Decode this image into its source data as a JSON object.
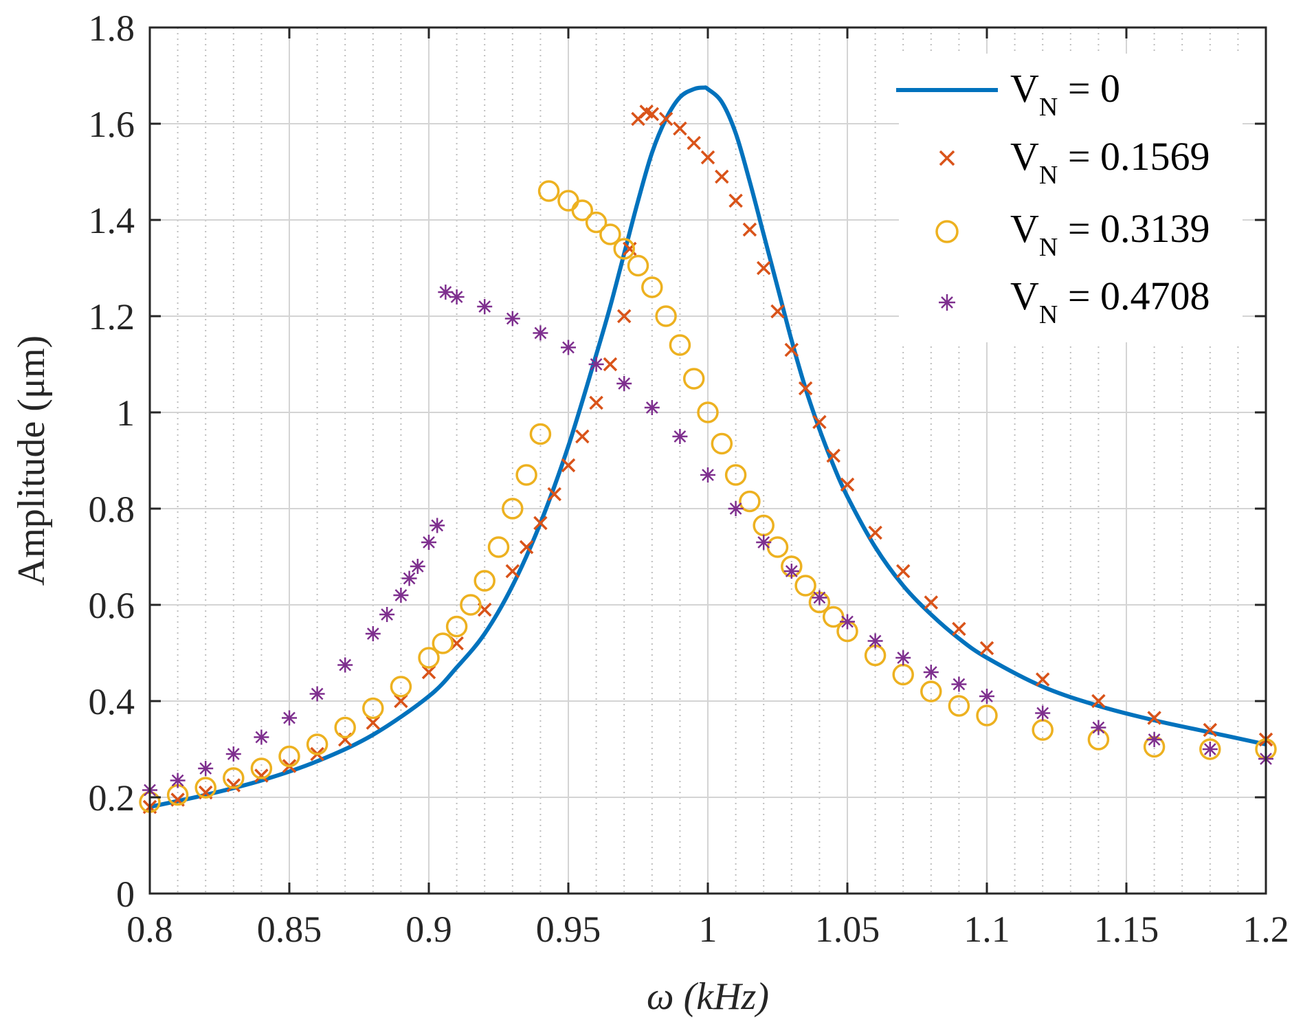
{
  "chart_data": {
    "type": "scatter",
    "title": "",
    "xlabel": {
      "symbol": "ω",
      "unit": "(kHz)"
    },
    "ylabel": {
      "text": "Amplitude",
      "unit": "(μm)"
    },
    "xlim": [
      0.8,
      1.2
    ],
    "ylim": [
      0,
      1.8
    ],
    "xticks": [
      0.8,
      0.85,
      0.9,
      0.95,
      1.0,
      1.05,
      1.1,
      1.15,
      1.2
    ],
    "xtick_labels": [
      "0.8",
      "0.85",
      "0.9",
      "0.95",
      "1",
      "1.05",
      "1.1",
      "1.15",
      "1.2"
    ],
    "yticks": [
      0,
      0.2,
      0.4,
      0.6,
      0.8,
      1.0,
      1.2,
      1.4,
      1.6,
      1.8
    ],
    "ytick_labels": [
      "0",
      "0.2",
      "0.4",
      "0.6",
      "0.8",
      "1",
      "1.2",
      "1.4",
      "1.6",
      "1.8"
    ],
    "grid": {
      "major": true,
      "minor_x": true
    },
    "legend_position": "top-right",
    "series": [
      {
        "name": "V_N = 0",
        "legend": {
          "base": "V",
          "sub": "N",
          "rest": " = 0"
        },
        "marker": "line",
        "color": "#0072BD",
        "x": [
          0.8,
          0.82,
          0.84,
          0.86,
          0.88,
          0.9,
          0.91,
          0.92,
          0.93,
          0.94,
          0.95,
          0.96,
          0.965,
          0.97,
          0.975,
          0.98,
          0.985,
          0.99,
          0.995,
          0.9985,
          1.0,
          1.005,
          1.01,
          1.015,
          1.02,
          1.025,
          1.03,
          1.035,
          1.04,
          1.045,
          1.05,
          1.06,
          1.07,
          1.08,
          1.09,
          1.1,
          1.12,
          1.14,
          1.16,
          1.18,
          1.2
        ],
        "y": [
          0.18,
          0.205,
          0.235,
          0.275,
          0.33,
          0.41,
          0.47,
          0.54,
          0.64,
          0.77,
          0.93,
          1.12,
          1.22,
          1.33,
          1.44,
          1.54,
          1.61,
          1.655,
          1.672,
          1.675,
          1.672,
          1.645,
          1.58,
          1.48,
          1.37,
          1.26,
          1.15,
          1.05,
          0.965,
          0.89,
          0.825,
          0.72,
          0.64,
          0.58,
          0.53,
          0.49,
          0.43,
          0.39,
          0.36,
          0.335,
          0.31
        ]
      },
      {
        "name": "V_N = 0.1569",
        "legend": {
          "base": "V",
          "sub": "N",
          "rest": " = 0.1569"
        },
        "marker": "x",
        "color": "#D95319",
        "x": [
          0.8,
          0.81,
          0.82,
          0.83,
          0.84,
          0.85,
          0.86,
          0.87,
          0.88,
          0.89,
          0.9,
          0.91,
          0.92,
          0.93,
          0.935,
          0.94,
          0.945,
          0.95,
          0.955,
          0.96,
          0.965,
          0.97,
          0.972,
          0.975,
          0.978,
          0.98,
          0.985,
          0.99,
          0.995,
          1.0,
          1.005,
          1.01,
          1.015,
          1.02,
          1.025,
          1.03,
          1.035,
          1.04,
          1.045,
          1.05,
          1.06,
          1.07,
          1.08,
          1.09,
          1.1,
          1.12,
          1.14,
          1.16,
          1.18,
          1.2
        ],
        "y": [
          0.18,
          0.195,
          0.21,
          0.225,
          0.245,
          0.265,
          0.29,
          0.32,
          0.355,
          0.4,
          0.46,
          0.52,
          0.59,
          0.67,
          0.72,
          0.77,
          0.83,
          0.89,
          0.95,
          1.02,
          1.1,
          1.2,
          1.34,
          1.61,
          1.625,
          1.62,
          1.61,
          1.59,
          1.56,
          1.53,
          1.49,
          1.44,
          1.38,
          1.3,
          1.21,
          1.13,
          1.05,
          0.98,
          0.91,
          0.85,
          0.75,
          0.67,
          0.605,
          0.55,
          0.51,
          0.445,
          0.4,
          0.365,
          0.34,
          0.32
        ]
      },
      {
        "name": "V_N = 0.3139",
        "legend": {
          "base": "V",
          "sub": "N",
          "rest": " = 0.3139"
        },
        "marker": "o",
        "color": "#EDB120",
        "x": [
          0.8,
          0.81,
          0.82,
          0.83,
          0.84,
          0.85,
          0.86,
          0.87,
          0.88,
          0.89,
          0.9,
          0.905,
          0.91,
          0.915,
          0.92,
          0.925,
          0.93,
          0.935,
          0.94,
          0.943,
          0.95,
          0.955,
          0.96,
          0.965,
          0.97,
          0.975,
          0.98,
          0.985,
          0.99,
          0.995,
          1.0,
          1.005,
          1.01,
          1.015,
          1.02,
          1.025,
          1.03,
          1.035,
          1.04,
          1.045,
          1.05,
          1.06,
          1.07,
          1.08,
          1.09,
          1.1,
          1.12,
          1.14,
          1.16,
          1.18,
          1.2
        ],
        "y": [
          0.19,
          0.205,
          0.22,
          0.24,
          0.26,
          0.285,
          0.31,
          0.345,
          0.385,
          0.43,
          0.49,
          0.52,
          0.555,
          0.6,
          0.65,
          0.72,
          0.8,
          0.87,
          0.955,
          1.46,
          1.44,
          1.42,
          1.395,
          1.37,
          1.34,
          1.305,
          1.26,
          1.2,
          1.14,
          1.07,
          1.0,
          0.935,
          0.87,
          0.815,
          0.765,
          0.72,
          0.68,
          0.64,
          0.605,
          0.575,
          0.545,
          0.495,
          0.455,
          0.42,
          0.39,
          0.37,
          0.34,
          0.32,
          0.305,
          0.3,
          0.3
        ]
      },
      {
        "name": "V_N = 0.4708",
        "legend": {
          "base": "V",
          "sub": "N",
          "rest": " = 0.4708"
        },
        "marker": "*",
        "color": "#7E2F8E",
        "x": [
          0.8,
          0.81,
          0.82,
          0.83,
          0.84,
          0.85,
          0.86,
          0.87,
          0.88,
          0.885,
          0.89,
          0.893,
          0.896,
          0.9,
          0.903,
          0.906,
          0.91,
          0.92,
          0.93,
          0.94,
          0.95,
          0.96,
          0.97,
          0.98,
          0.99,
          1.0,
          1.01,
          1.02,
          1.03,
          1.04,
          1.05,
          1.06,
          1.07,
          1.08,
          1.09,
          1.1,
          1.12,
          1.14,
          1.16,
          1.18,
          1.2
        ],
        "y": [
          0.215,
          0.235,
          0.26,
          0.29,
          0.325,
          0.365,
          0.415,
          0.475,
          0.54,
          0.58,
          0.62,
          0.655,
          0.68,
          0.73,
          0.765,
          1.25,
          1.24,
          1.22,
          1.195,
          1.165,
          1.135,
          1.1,
          1.06,
          1.01,
          0.95,
          0.87,
          0.8,
          0.73,
          0.67,
          0.615,
          0.565,
          0.525,
          0.49,
          0.46,
          0.435,
          0.41,
          0.375,
          0.345,
          0.32,
          0.3,
          0.28
        ]
      }
    ]
  }
}
